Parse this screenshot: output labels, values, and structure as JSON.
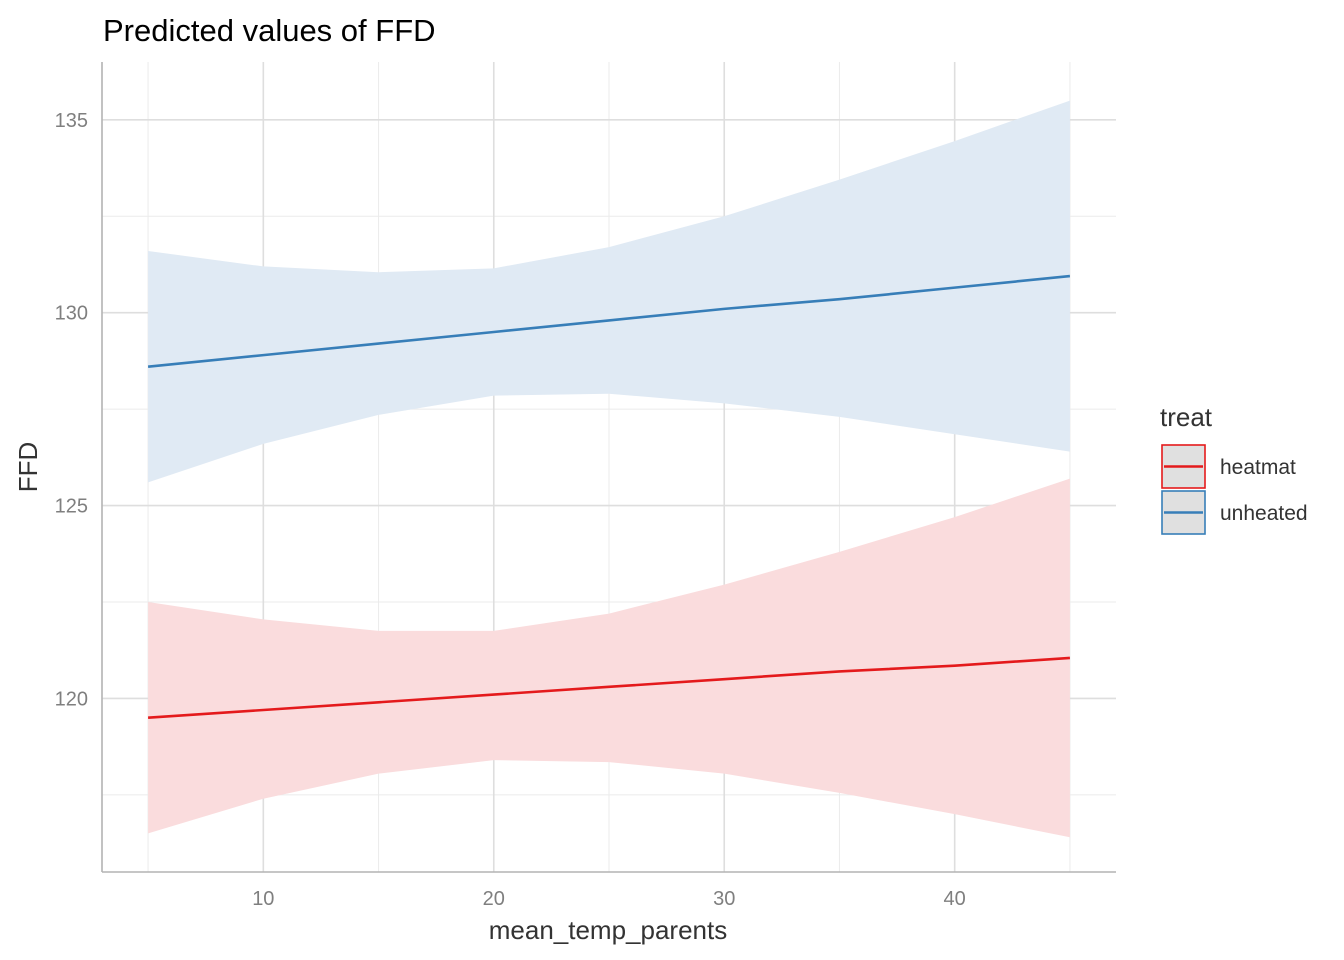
{
  "chart_data": {
    "type": "line",
    "title": "Predicted values of FFD",
    "xlabel": "mean_temp_parents",
    "ylabel": "FFD",
    "xlim": [
      3,
      47
    ],
    "ylim": [
      115.5,
      136.5
    ],
    "x_ticks": [
      10,
      20,
      30,
      40
    ],
    "x_tick_labels": [
      "10",
      "20",
      "30",
      "40"
    ],
    "y_ticks": [
      120,
      125,
      130,
      135
    ],
    "y_tick_labels": [
      "120",
      "125",
      "130",
      "135"
    ],
    "grid": true,
    "legend": {
      "title": "treat",
      "position": "right"
    },
    "x": [
      5,
      10,
      15,
      20,
      25,
      30,
      35,
      40,
      45
    ],
    "series": [
      {
        "name": "heatmat",
        "color": "#e41a1c",
        "fill": "#fadcdd",
        "values": [
          119.5,
          119.7,
          119.9,
          120.1,
          120.3,
          120.5,
          120.7,
          120.85,
          121.05
        ],
        "lower": [
          116.5,
          117.4,
          118.05,
          118.4,
          118.35,
          118.05,
          117.55,
          117.0,
          116.4
        ],
        "upper": [
          122.5,
          122.05,
          121.75,
          121.75,
          122.2,
          122.95,
          123.8,
          124.7,
          125.7
        ]
      },
      {
        "name": "unheated",
        "color": "#377eb8",
        "fill": "#e0eaf4",
        "values": [
          128.6,
          128.9,
          129.2,
          129.5,
          129.8,
          130.1,
          130.35,
          130.65,
          130.95
        ],
        "lower": [
          125.6,
          126.6,
          127.35,
          127.85,
          127.9,
          127.65,
          127.3,
          126.85,
          126.4
        ],
        "upper": [
          131.6,
          131.2,
          131.05,
          131.15,
          131.7,
          132.5,
          133.45,
          134.45,
          135.5
        ]
      }
    ]
  }
}
